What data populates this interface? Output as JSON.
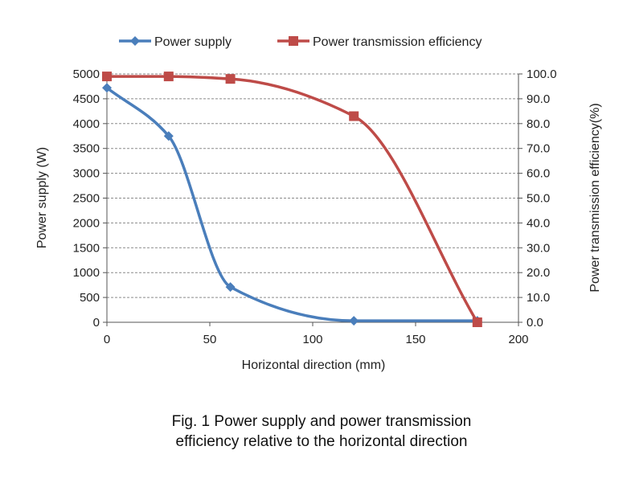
{
  "caption": {
    "line1": "Fig. 1 Power supply and power transmission",
    "line2": "efficiency relative to the horizontal direction"
  },
  "chart_data": {
    "type": "line",
    "title": "",
    "xlabel": "Horizontal direction (mm)",
    "ylabel": "Power supply (W)",
    "y2label": "Power transmission efficiency(%)",
    "xlim": [
      0,
      200
    ],
    "ylim": [
      0,
      5000
    ],
    "y2lim": [
      0,
      100
    ],
    "x_ticks": [
      "0",
      "50",
      "100",
      "150",
      "200"
    ],
    "y_ticks": [
      "0",
      "500",
      "1000",
      "1500",
      "2000",
      "2500",
      "3000",
      "3500",
      "4000",
      "4500",
      "5000"
    ],
    "y2_ticks": [
      "0.0",
      "10.0",
      "20.0",
      "30.0",
      "40.0",
      "50.0",
      "60.0",
      "70.0",
      "80.0",
      "90.0",
      "100.0"
    ],
    "grid": "horizontal dashed",
    "legend_position": "top",
    "smooth": true,
    "series": [
      {
        "name": "Power supply",
        "axis": "left",
        "color": "#4a7ebb",
        "marker": "diamond",
        "x": [
          0,
          30,
          60,
          120,
          180
        ],
        "y": [
          4720,
          3750,
          710,
          30,
          30
        ]
      },
      {
        "name": "Power transmission efficiency",
        "axis": "right",
        "color": "#be4b48",
        "marker": "square",
        "x": [
          0,
          30,
          60,
          120,
          180
        ],
        "y": [
          99,
          99,
          98,
          83,
          0
        ]
      }
    ]
  }
}
